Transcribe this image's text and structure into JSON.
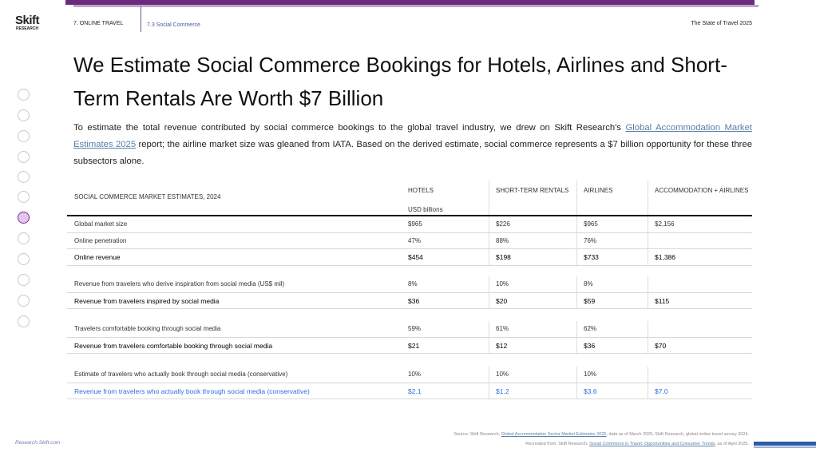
{
  "logo": {
    "name": "Skift",
    "sub": "RESEARCH"
  },
  "breadcrumb": {
    "section": "7. ONLINE TRAVEL",
    "subsection": "7.3 Social Commerce"
  },
  "report": "The State of Travel 2025",
  "title": "We Estimate Social Commerce Bookings for Hotels, Airlines and Short-Term Rentals Are Worth $7 Billion",
  "intro": {
    "before": "To estimate the total revenue contributed by social commerce bookings to the global travel industry, we drew on Skift Research's ",
    "link": "Global Accommodation Market Estimates 2025",
    "after": " report; the airline market size was gleaned from IATA. Based on the derived estimate, social commerce represents a $7 billion opportunity for these three subsectors alone."
  },
  "table": {
    "caption": "SOCIAL COMMERCE MARKET ESTIMATES, 2024",
    "columns": [
      "HOTELS",
      "SHORT-TERM RENTALS",
      "AIRLINES",
      "ACCOMMODATION + AIRLINES"
    ],
    "unit": "USD billions",
    "groups": [
      [
        [
          "Global market size",
          "$965",
          "$226",
          "$965",
          "$2,156"
        ],
        [
          "Online penetration",
          "47%",
          "88%",
          "76%",
          null
        ],
        [
          "Online revenue",
          "$454",
          "$198",
          "$733",
          "$1,386"
        ]
      ],
      [
        [
          "Revenue from travelers who derive inspiration from social media (US$ mil)",
          "8%",
          "10%",
          "8%",
          null
        ],
        [
          "Revenue from travelers inspired by social media",
          "$36",
          "$20",
          "$59",
          "$115"
        ]
      ],
      [
        [
          "Travelers comfortable booking through social media",
          "59%",
          "61%",
          "62%",
          null
        ],
        [
          "Revenue from travelers comfortable booking through social media",
          "$21",
          "$12",
          "$36",
          "$70"
        ]
      ],
      [
        [
          "Estimate of travelers who actually book through social media (conservative)",
          "10%",
          "10%",
          "10%",
          null
        ],
        [
          "Revenue from travelers who actually book through social media (conservative)",
          "$2.1",
          "$1.2",
          "$3.6",
          "$7.0"
        ]
      ]
    ]
  },
  "source": {
    "line1": {
      "before": "Source: Skift Research, ",
      "link": "Global Accommodation Sector Market Estimates 2025",
      "after": ", data as of March 2025; Skift Research, global online travel survey 2024."
    },
    "line2": {
      "before": "Recreated from: Skift Research, ",
      "link": "Social Commerce in Travel: Opportunities and Consumer Trends",
      "after": ", as of April 2025."
    }
  },
  "footer": "Research.Skift.com"
}
